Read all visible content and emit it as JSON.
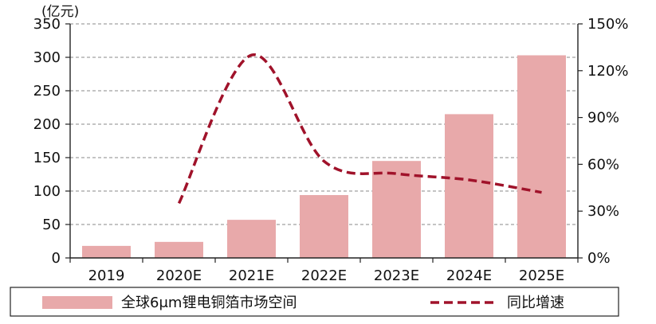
{
  "chart_data": {
    "type": "bar",
    "title": "",
    "unit_label": "(亿元)",
    "xlabel": "",
    "ylabel": "",
    "categories": [
      "2019",
      "2020E",
      "2021E",
      "2022E",
      "2023E",
      "2024E",
      "2025E"
    ],
    "y_ticks": [
      "0",
      "50",
      "100",
      "150",
      "200",
      "250",
      "300",
      "350"
    ],
    "y2_ticks": [
      "0%",
      "30%",
      "60%",
      "90%",
      "120%",
      "150%"
    ],
    "ylim": [
      0,
      350
    ],
    "y2lim": [
      0,
      150
    ],
    "grid": true,
    "legend_position": "bottom",
    "series": [
      {
        "name": "全球6μm锂电铜箔市场空间",
        "type": "bar",
        "axis": "left",
        "color": "#E8A9AA",
        "values": [
          18,
          24,
          57,
          94,
          145,
          215,
          303
        ]
      },
      {
        "name": "同比增速",
        "type": "line",
        "axis": "right",
        "style": "dashed",
        "color": "#A0122A",
        "values": [
          null,
          35,
          130,
          62,
          54,
          50,
          42
        ]
      }
    ]
  }
}
